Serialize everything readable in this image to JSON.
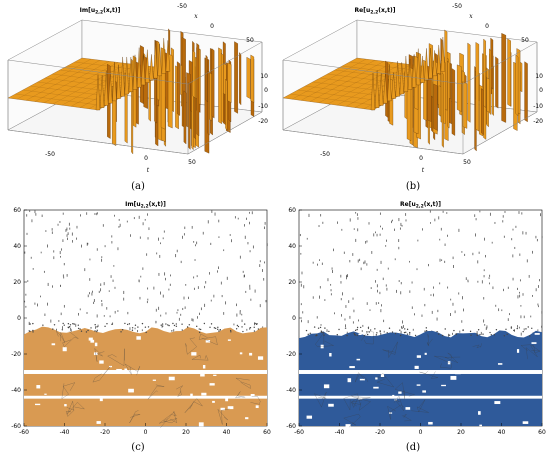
{
  "chart_data": [
    {
      "id": "a",
      "type": "surface-3d",
      "title": "Im[u",
      "title_sub": "2,2",
      "title_tail": "(x,t)]",
      "caption": "(a)",
      "x_label": "x",
      "t_label": "t",
      "x_ticks": [
        "-50",
        "0",
        "50"
      ],
      "t_ticks": [
        "-50",
        "0",
        "50"
      ],
      "z_ticks": [
        "10",
        "0",
        "-10",
        "-20"
      ],
      "xlim": [
        -60,
        60
      ],
      "tlim": [
        -60,
        60
      ],
      "zlim": [
        -20,
        15
      ],
      "surface_color": "#e89a1e",
      "surface_shade": "#b86a0c"
    },
    {
      "id": "b",
      "type": "surface-3d",
      "title": "Re[u",
      "title_sub": "2,2",
      "title_tail": "(x,t)]",
      "caption": "(b)",
      "x_label": "x",
      "t_label": "t",
      "x_ticks": [
        "-50",
        "0",
        "50"
      ],
      "t_ticks": [
        "-50",
        "0",
        "50"
      ],
      "z_ticks": [
        "10",
        "0",
        "-10",
        "-20"
      ],
      "xlim": [
        -60,
        60
      ],
      "tlim": [
        -60,
        60
      ],
      "zlim": [
        -20,
        15
      ],
      "surface_color": "#e89a1e",
      "surface_shade": "#b86a0c"
    },
    {
      "id": "c",
      "type": "contour",
      "title": "Im[u",
      "title_sub": "2,2",
      "title_tail": "(x,t)]",
      "caption": "(c)",
      "x_ticks": [
        -60,
        -40,
        -20,
        0,
        20,
        40,
        60
      ],
      "y_ticks": [
        60,
        40,
        20,
        0,
        -20,
        -40,
        -60
      ],
      "xlim": [
        -60,
        60
      ],
      "ylim": [
        -60,
        60
      ],
      "fill_color": "#d99a52",
      "fill_top_y": -7
    },
    {
      "id": "d",
      "type": "contour",
      "title": "Re[u",
      "title_sub": "2,2",
      "title_tail": "(x,t)]",
      "caption": "(d)",
      "x_ticks": [
        -60,
        -40,
        -20,
        0,
        20,
        40,
        60
      ],
      "y_ticks": [
        60,
        40,
        20,
        0,
        -20,
        -40,
        -60
      ],
      "xlim": [
        -60,
        60
      ],
      "ylim": [
        -60,
        60
      ],
      "fill_color": "#2f5a9a",
      "fill_top_y": -9
    }
  ]
}
